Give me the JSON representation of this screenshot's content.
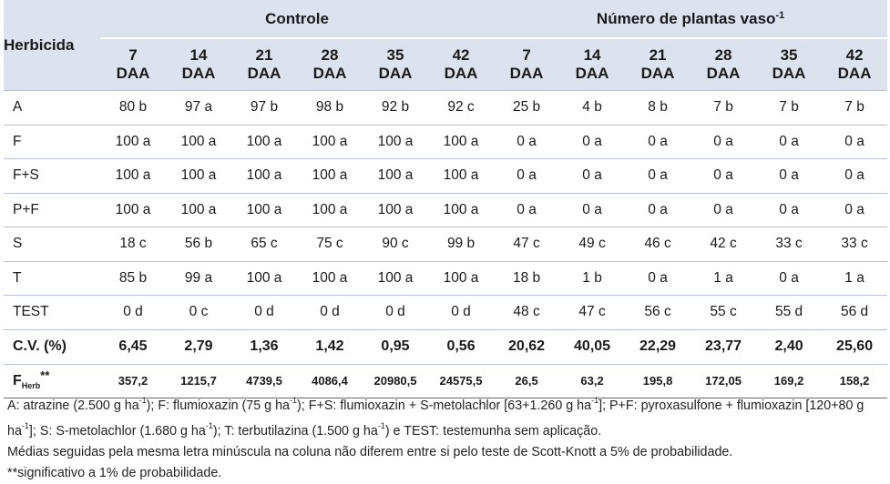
{
  "header": {
    "herbicida_label": "Herbicida",
    "group1_title": "Controle",
    "group2_title": "Número de plantas vaso",
    "group2_sup": "-1",
    "days": [
      "7",
      "14",
      "21",
      "28",
      "35",
      "42",
      "7",
      "14",
      "21",
      "28",
      "35",
      "42"
    ],
    "daa_label": "DAA"
  },
  "rows": [
    {
      "label": "A",
      "values": [
        "80 b",
        "97 a",
        "97 b",
        "98 b",
        "92 b",
        "92 c",
        "25 b",
        "4 b",
        "8 b",
        "7 b",
        "7 b",
        "7 b"
      ]
    },
    {
      "label": "F",
      "values": [
        "100 a",
        "100 a",
        "100 a",
        "100 a",
        "100 a",
        "100 a",
        "0 a",
        "0 a",
        "0 a",
        "0 a",
        "0 a",
        "0 a"
      ]
    },
    {
      "label": "F+S",
      "values": [
        "100 a",
        "100 a",
        "100 a",
        "100 a",
        "100 a",
        "100 a",
        "0 a",
        "0 a",
        "0 a",
        "0 a",
        "0 a",
        "0 a"
      ]
    },
    {
      "label": "P+F",
      "values": [
        "100 a",
        "100 a",
        "100 a",
        "100 a",
        "100 a",
        "100 a",
        "0 a",
        "0 a",
        "0 a",
        "0 a",
        "0 a",
        "0 a"
      ]
    },
    {
      "label": "S",
      "values": [
        "18 c",
        "56 b",
        "65 c",
        "75 c",
        "90 c",
        "99 b",
        "47 c",
        "49 c",
        "46 c",
        "42 c",
        "33 c",
        "33 c"
      ]
    },
    {
      "label": "T",
      "values": [
        "85 b",
        "99 a",
        "100 a",
        "100 a",
        "100 a",
        "100 a",
        "18 b",
        "1 b",
        "0 a",
        "1 a",
        "0 a",
        "1 a"
      ]
    },
    {
      "label": "TEST",
      "values": [
        "0 d",
        "0 c",
        "0 d",
        "0 d",
        "0 d",
        "0 d",
        "48 c",
        "47 c",
        "56 c",
        "55 c",
        "55 d",
        "56 d"
      ]
    }
  ],
  "cv": {
    "label": "C.V. (%)",
    "values": [
      "6,45",
      "2,79",
      "1,36",
      "1,42",
      "0,95",
      "0,56",
      "20,62",
      "40,05",
      "22,29",
      "23,77",
      "2,40",
      "25,60"
    ]
  },
  "f_herb": {
    "label_main": "F",
    "label_sub": "Herb",
    "label_sup": "**",
    "values": [
      "357,2",
      "1215,7",
      "4739,5",
      "4086,4",
      "20980,5",
      "24575,5",
      "26,5",
      "63,2",
      "195,8",
      "172,05",
      "169,2",
      "158,2"
    ]
  },
  "notes": {
    "line1": {
      "a": "A: atrazine (2.500 g ha",
      "a_sup": "-1",
      "b": "); F: flumioxazin (75 g ha",
      "b_sup": "-1",
      "c": "); F+S: flumioxazin + S-metolachlor [63+1.260 g ha",
      "c_sup": "-1",
      "d": "]; P+F: pyroxasulfone + flumioxazin [120+80 g ha",
      "d_sup": "-1",
      "e": "]; S: S-metolachlor (1.680 g ha",
      "e_sup": "-1",
      "f": "); T: terbutilazina (1.500 g ha",
      "f_sup": "-1",
      "g": ") e TEST: testemunha sem aplicação."
    },
    "line2": "Médias seguidas pela mesma letra minúscula na coluna não diferem entre si pelo teste de Scott-Knott a 5% de probabilidade.",
    "line3": "**significativo a 1% de probabilidade."
  },
  "colors": {
    "header_bg": "#dde3ee",
    "rule": "#b9c2d4"
  }
}
